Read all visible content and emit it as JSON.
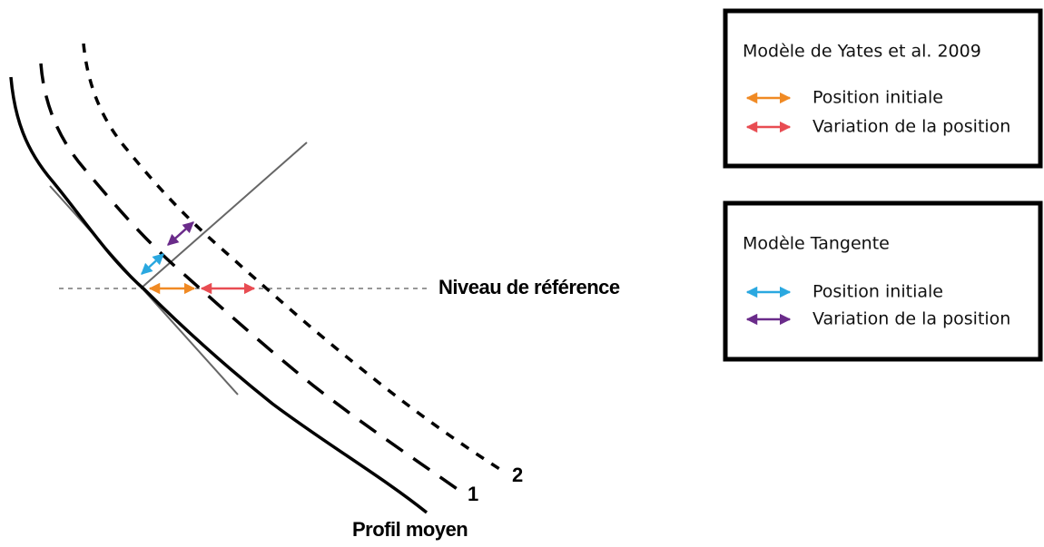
{
  "reference_label": "Niveau de référence",
  "profile_label": "Profil moyen",
  "curve_labels": [
    "1",
    "2"
  ],
  "legends": [
    {
      "title": "Modèle de Yates et al. 2009",
      "items": [
        {
          "label": "Position initiale"
        },
        {
          "label": "Variation de la position"
        }
      ]
    },
    {
      "title": "Modèle Tangente",
      "items": [
        {
          "label": "Position initiale"
        },
        {
          "label": "Variation de la position"
        }
      ]
    }
  ]
}
